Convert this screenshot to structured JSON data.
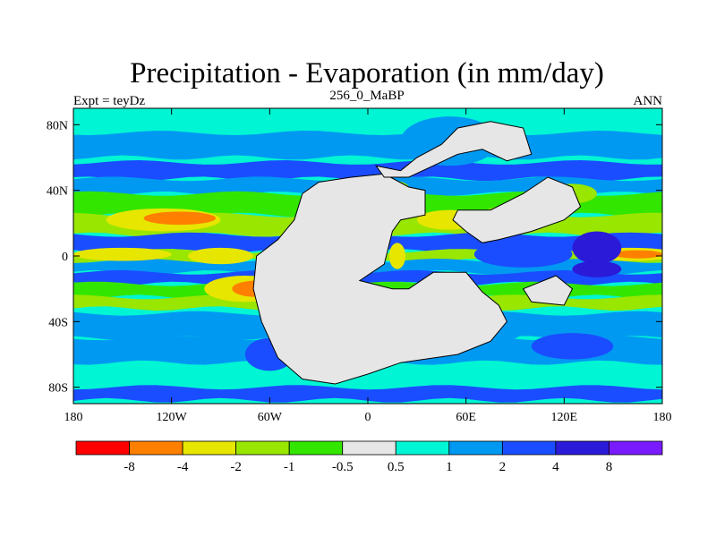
{
  "chart_data": {
    "type": "heatmap",
    "title": "Precipitation - Evaporation (in mm/day)",
    "subtitle": "256_0_MaBP",
    "left_label": "Expt = teyDz",
    "right_label": "ANN",
    "x_range": [
      -180,
      180
    ],
    "y_range": [
      -90,
      90
    ],
    "x_ticks": [
      {
        "value": -180,
        "label": "180"
      },
      {
        "value": -120,
        "label": "120W"
      },
      {
        "value": -60,
        "label": "60W"
      },
      {
        "value": 0,
        "label": "0"
      },
      {
        "value": 60,
        "label": "60E"
      },
      {
        "value": 120,
        "label": "120E"
      },
      {
        "value": 180,
        "label": "180"
      }
    ],
    "y_ticks": [
      {
        "value": 80,
        "label": "80N"
      },
      {
        "value": 40,
        "label": "40N"
      },
      {
        "value": 0,
        "label": "0"
      },
      {
        "value": -40,
        "label": "40S"
      },
      {
        "value": -80,
        "label": "80S"
      }
    ],
    "colorbar": {
      "colors": [
        "#ff0000",
        "#ff7f00",
        "#e6e600",
        "#99e600",
        "#33e600",
        "#e6e6e6",
        "#00f5d4",
        "#0099f2",
        "#1a4dff",
        "#2b1ad8",
        "#7a1aff"
      ],
      "labels": [
        "-8",
        "-4",
        "-2",
        "-1",
        "-0.5",
        "0.5",
        "1",
        "2",
        "4",
        "8"
      ]
    },
    "background_color": "#00f5d4",
    "zonal_bands": [
      {
        "lat": [
          75,
          90
        ],
        "color": "#00f5d4"
      },
      {
        "lat": [
          60,
          75
        ],
        "color": "#0099f2"
      },
      {
        "lat": [
          47,
          57
        ],
        "color": "#1a4dff"
      },
      {
        "lat": [
          38,
          47
        ],
        "color": "#0099f2"
      },
      {
        "lat": [
          25,
          38
        ],
        "color": "#33e600"
      },
      {
        "lat": [
          13,
          25
        ],
        "color": "#99e600"
      },
      {
        "lat": [
          3,
          13
        ],
        "color": "#1a4dff"
      },
      {
        "lat": [
          -3,
          3
        ],
        "color": "#99e600"
      },
      {
        "lat": [
          -10,
          -3
        ],
        "color": "#0099f2"
      },
      {
        "lat": [
          -17,
          -10
        ],
        "color": "#1a4dff"
      },
      {
        "lat": [
          -25,
          -17
        ],
        "color": "#33e600"
      },
      {
        "lat": [
          -32,
          -25
        ],
        "color": "#99e600"
      },
      {
        "lat": [
          -50,
          -35
        ],
        "color": "#0099f2"
      },
      {
        "lat": [
          -65,
          -50
        ],
        "color": "#0099f2"
      },
      {
        "lat": [
          -88,
          -80
        ],
        "color": "#1a4dff"
      }
    ],
    "patches": [
      {
        "lon": -125,
        "lat": 22,
        "rlon": 35,
        "rlat": 7,
        "color": "#e6e600"
      },
      {
        "lon": -115,
        "lat": 23,
        "rlon": 22,
        "rlat": 4,
        "color": "#ff7f00"
      },
      {
        "lon": -150,
        "lat": 1,
        "rlon": 30,
        "rlat": 4,
        "color": "#e6e600"
      },
      {
        "lon": -90,
        "lat": 0,
        "rlon": 20,
        "rlat": 5,
        "color": "#e6e600"
      },
      {
        "lon": -75,
        "lat": -20,
        "rlon": 25,
        "rlat": 8,
        "color": "#e6e600"
      },
      {
        "lon": -68,
        "lat": -20,
        "rlon": 15,
        "rlat": 5,
        "color": "#ff7f00"
      },
      {
        "lon": 160,
        "lat": 1,
        "rlon": 30,
        "rlat": 4,
        "color": "#e6e600"
      },
      {
        "lon": 165,
        "lat": 1,
        "rlon": 15,
        "rlat": 2.5,
        "color": "#ff7f00"
      },
      {
        "lon": 95,
        "lat": 1,
        "rlon": 30,
        "rlat": 8,
        "color": "#1a4dff"
      },
      {
        "lon": 140,
        "lat": 5,
        "rlon": 15,
        "rlat": 10,
        "color": "#2b1ad8"
      },
      {
        "lon": 140,
        "lat": -8,
        "rlon": 15,
        "rlat": 5,
        "color": "#2b1ad8"
      },
      {
        "lon": 5,
        "lat": 42,
        "rlon": 20,
        "rlat": 5,
        "color": "#99e600"
      },
      {
        "lon": 50,
        "lat": 22,
        "rlon": 20,
        "rlat": 6,
        "color": "#e6e600"
      },
      {
        "lon": 90,
        "lat": 25,
        "rlon": 20,
        "rlat": 6,
        "color": "#99e600"
      },
      {
        "lon": 125,
        "lat": 38,
        "rlon": 15,
        "rlat": 6,
        "color": "#99e600"
      },
      {
        "lon": 50,
        "lat": 70,
        "rlon": 30,
        "rlat": 15,
        "color": "#0099f2"
      },
      {
        "lon": 75,
        "lat": -45,
        "rlon": 20,
        "rlat": 8,
        "color": "#0099f2"
      },
      {
        "lon": 125,
        "lat": -55,
        "rlon": 25,
        "rlat": 8,
        "color": "#1a4dff"
      },
      {
        "lon": -60,
        "lat": -60,
        "rlon": 15,
        "rlat": 10,
        "color": "#1a4dff"
      },
      {
        "lon": 18,
        "lat": 0,
        "rlon": 5,
        "rlat": 8,
        "color": "#e6e600"
      },
      {
        "lon": -40,
        "lat": -25,
        "rlon": 4,
        "rlat": 4,
        "color": "#ff7f00"
      }
    ],
    "land_polygons": [
      {
        "name": "pangaea-west",
        "color": "#e6e6e6",
        "points": [
          [
            -30,
            45
          ],
          [
            -10,
            48
          ],
          [
            10,
            50
          ],
          [
            25,
            42
          ],
          [
            35,
            40
          ],
          [
            35,
            25
          ],
          [
            20,
            22
          ],
          [
            15,
            15
          ],
          [
            10,
            -5
          ],
          [
            -5,
            -15
          ],
          [
            15,
            -20
          ],
          [
            25,
            -20
          ],
          [
            40,
            -10
          ],
          [
            60,
            -10
          ],
          [
            70,
            -22
          ],
          [
            80,
            -30
          ],
          [
            85,
            -40
          ],
          [
            75,
            -52
          ],
          [
            55,
            -60
          ],
          [
            20,
            -65
          ],
          [
            0,
            -72
          ],
          [
            -20,
            -78
          ],
          [
            -40,
            -75
          ],
          [
            -55,
            -62
          ],
          [
            -65,
            -40
          ],
          [
            -70,
            -20
          ],
          [
            -68,
            0
          ],
          [
            -55,
            10
          ],
          [
            -45,
            22
          ],
          [
            -40,
            38
          ]
        ]
      },
      {
        "name": "north-landmass",
        "color": "#e6e6e6",
        "points": [
          [
            5,
            55
          ],
          [
            20,
            52
          ],
          [
            30,
            60
          ],
          [
            45,
            68
          ],
          [
            55,
            78
          ],
          [
            75,
            82
          ],
          [
            95,
            78
          ],
          [
            100,
            62
          ],
          [
            85,
            58
          ],
          [
            70,
            65
          ],
          [
            55,
            62
          ],
          [
            40,
            55
          ],
          [
            25,
            48
          ],
          [
            10,
            48
          ]
        ]
      },
      {
        "name": "east-asia-block",
        "color": "#e6e6e6",
        "points": [
          [
            55,
            28
          ],
          [
            75,
            28
          ],
          [
            95,
            38
          ],
          [
            110,
            48
          ],
          [
            125,
            42
          ],
          [
            130,
            30
          ],
          [
            120,
            22
          ],
          [
            100,
            15
          ],
          [
            80,
            10
          ],
          [
            70,
            8
          ],
          [
            60,
            15
          ],
          [
            52,
            22
          ]
        ]
      },
      {
        "name": "east-fragment",
        "color": "#e6e6e6",
        "points": [
          [
            95,
            -20
          ],
          [
            115,
            -12
          ],
          [
            125,
            -20
          ],
          [
            120,
            -30
          ],
          [
            100,
            -28
          ]
        ]
      }
    ]
  }
}
